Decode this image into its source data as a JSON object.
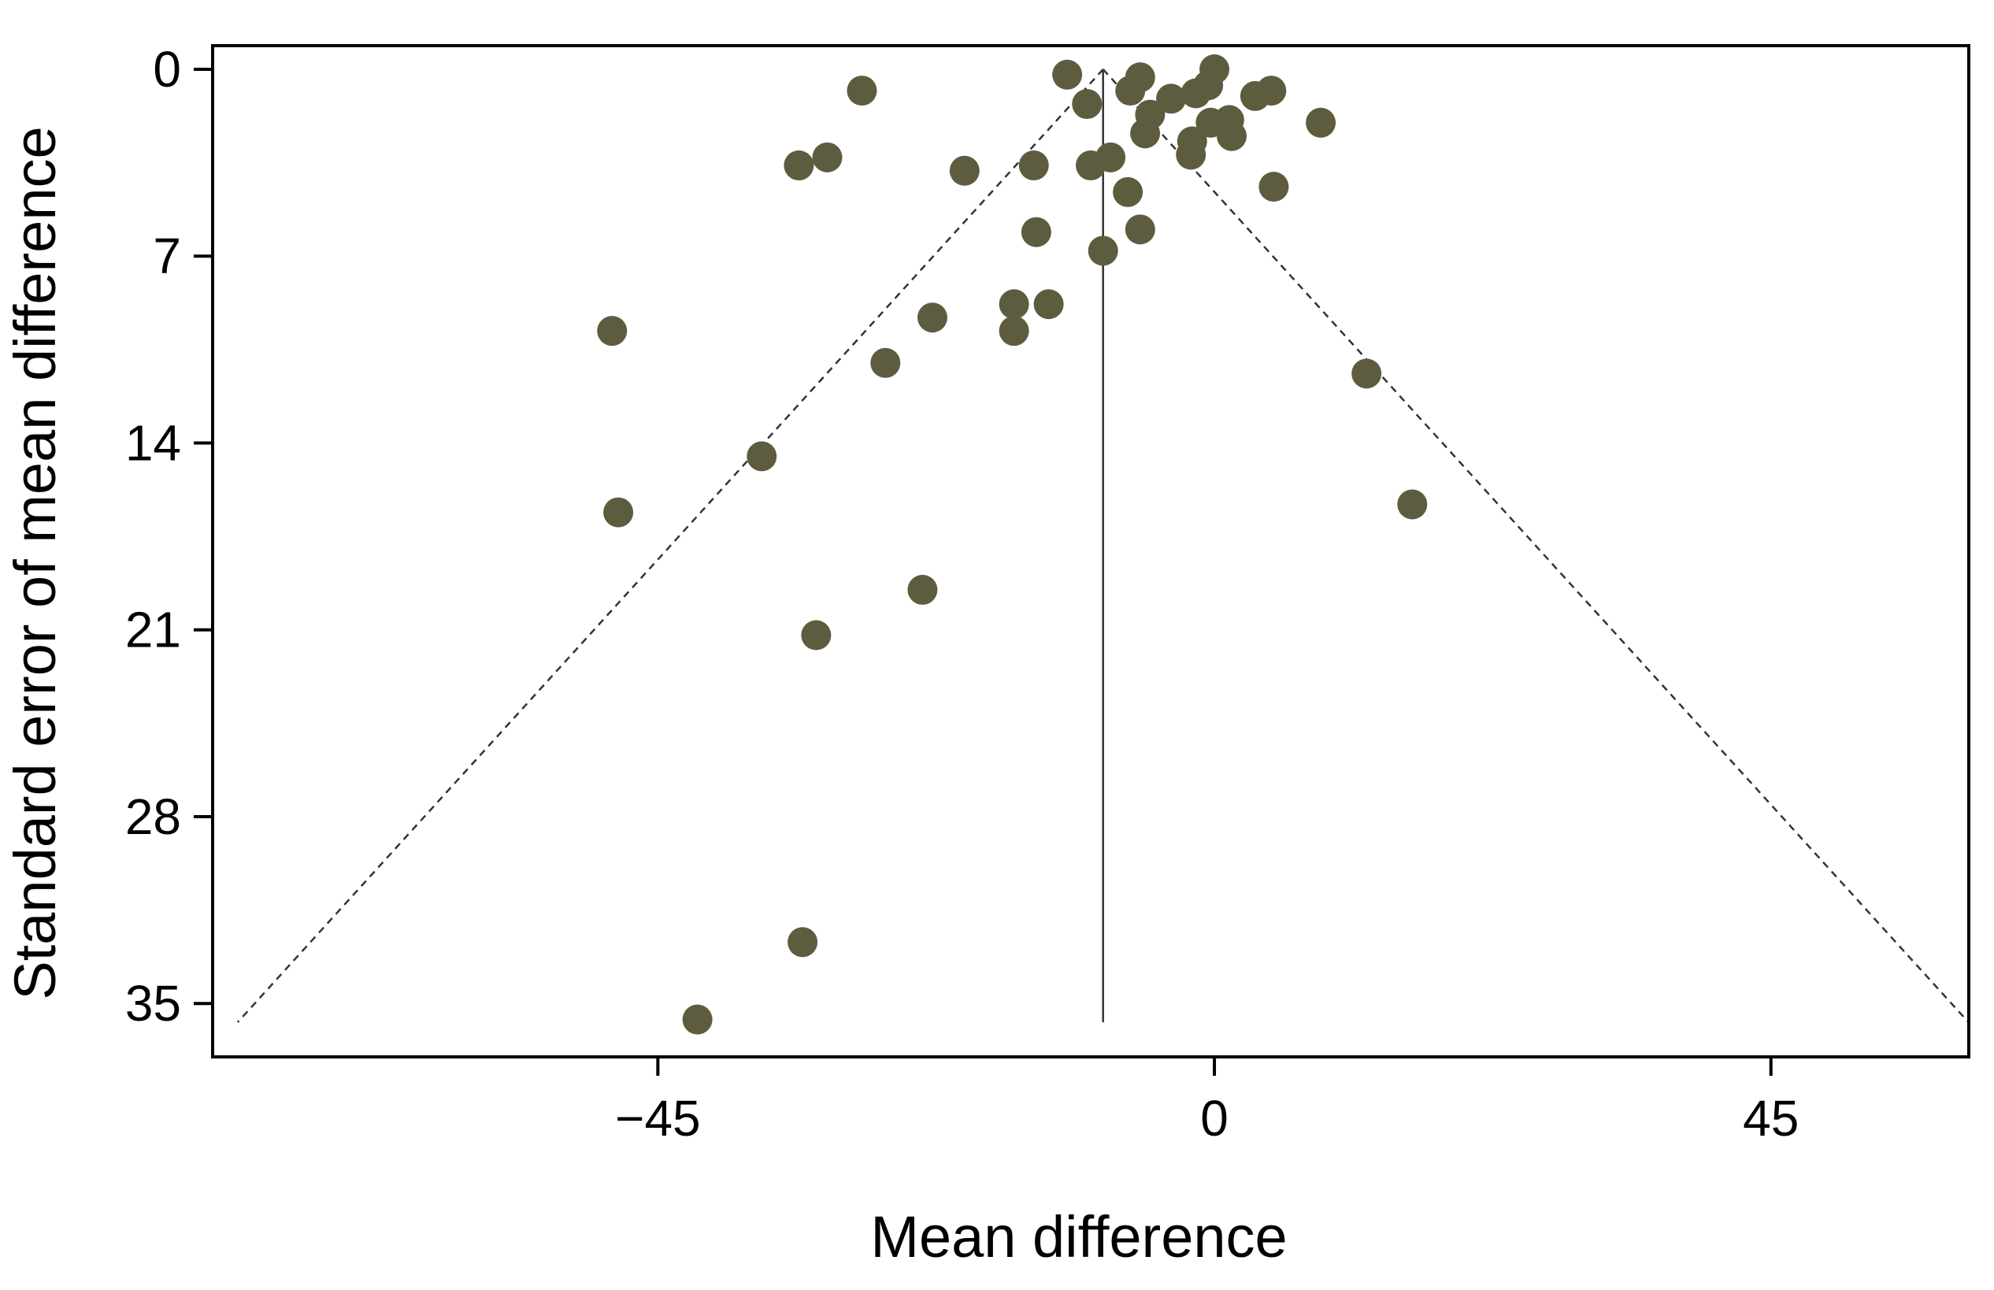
{
  "chart_data": {
    "type": "scatter",
    "subtype": "funnel plot",
    "title": "",
    "xlabel": "Mean difference",
    "ylabel": "Standard error of mean difference",
    "xlim": [
      -81,
      61
    ],
    "ylim": [
      0,
      37
    ],
    "y_inverted": true,
    "x_ticks": [
      -45,
      0,
      45
    ],
    "x_tick_labels": [
      "−45",
      "0",
      "45"
    ],
    "y_ticks": [
      0,
      7,
      14,
      21,
      28,
      35
    ],
    "y_tick_labels": [
      "0",
      "7",
      "14",
      "21",
      "28",
      "35"
    ],
    "grid": false,
    "legend": "none",
    "pooled_estimate": -9,
    "funnel_max_se": 35.7,
    "funnel_z": 1.96,
    "colors": {
      "point": "#5e5c3f",
      "axis": "#000000",
      "funnel": "#333333"
    },
    "points": [
      {
        "x": -11.9,
        "y": 0.2
      },
      {
        "x": -6.0,
        "y": 0.3
      },
      {
        "x": 0.0,
        "y": 0.0
      },
      {
        "x": -28.5,
        "y": 0.8
      },
      {
        "x": -6.8,
        "y": 0.8
      },
      {
        "x": -3.5,
        "y": 1.1
      },
      {
        "x": -1.5,
        "y": 0.9
      },
      {
        "x": -0.5,
        "y": 0.6
      },
      {
        "x": 3.3,
        "y": 1.0
      },
      {
        "x": 4.6,
        "y": 0.8
      },
      {
        "x": -10.3,
        "y": 1.3
      },
      {
        "x": -5.2,
        "y": 1.7
      },
      {
        "x": 1.2,
        "y": 1.9
      },
      {
        "x": -0.3,
        "y": 2.0
      },
      {
        "x": 8.6,
        "y": 2.0
      },
      {
        "x": -5.6,
        "y": 2.4
      },
      {
        "x": 1.4,
        "y": 2.5
      },
      {
        "x": -1.8,
        "y": 2.7
      },
      {
        "x": -1.9,
        "y": 3.2
      },
      {
        "x": -8.4,
        "y": 3.3
      },
      {
        "x": -31.3,
        "y": 3.3
      },
      {
        "x": -33.6,
        "y": 3.6
      },
      {
        "x": -14.6,
        "y": 3.6
      },
      {
        "x": -10.0,
        "y": 3.6
      },
      {
        "x": -20.2,
        "y": 3.8
      },
      {
        "x": 4.8,
        "y": 4.4
      },
      {
        "x": -7.0,
        "y": 4.6
      },
      {
        "x": -14.4,
        "y": 6.1
      },
      {
        "x": -6.0,
        "y": 6.0
      },
      {
        "x": -9.0,
        "y": 6.8
      },
      {
        "x": -16.2,
        "y": 8.8
      },
      {
        "x": -13.4,
        "y": 8.8
      },
      {
        "x": -22.8,
        "y": 9.3
      },
      {
        "x": -16.2,
        "y": 9.8
      },
      {
        "x": -48.7,
        "y": 9.8
      },
      {
        "x": -26.6,
        "y": 11.0
      },
      {
        "x": 12.3,
        "y": 11.4
      },
      {
        "x": -36.6,
        "y": 14.5
      },
      {
        "x": -48.2,
        "y": 16.6
      },
      {
        "x": 16.0,
        "y": 16.3
      },
      {
        "x": -23.6,
        "y": 19.5
      },
      {
        "x": -32.2,
        "y": 21.2
      },
      {
        "x": -33.3,
        "y": 32.7
      },
      {
        "x": -41.8,
        "y": 35.6
      }
    ]
  }
}
